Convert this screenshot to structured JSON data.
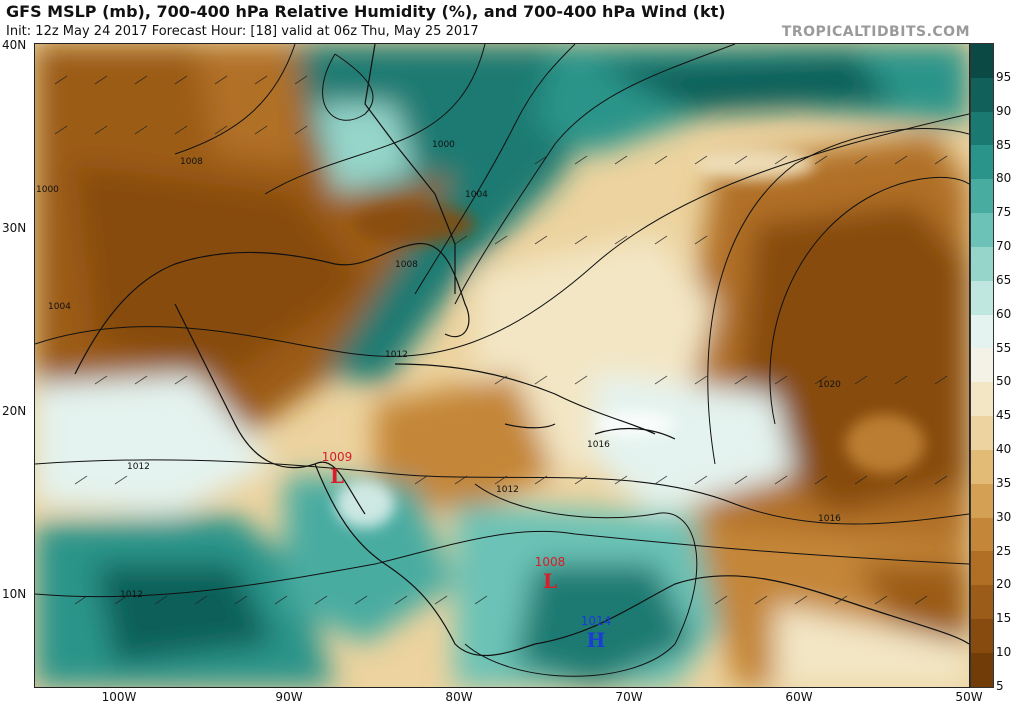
{
  "header": {
    "title": "GFS MSLP (mb), 700-400 hPa Relative Humidity (%), and 700-400 hPa Wind (kt)",
    "subtitle": "Init: 12z May 24 2017   Forecast Hour: [18]   valid at 06z Thu, May 25 2017",
    "brand": "TROPICALTIDBITS.COM"
  },
  "map": {
    "lat_labels": [
      "40N",
      "30N",
      "20N",
      "10N"
    ],
    "lon_labels": [
      "100W",
      "90W",
      "80W",
      "70W",
      "60W",
      "50W"
    ]
  },
  "colorbar": {
    "labels": [
      "95",
      "90",
      "85",
      "80",
      "75",
      "70",
      "65",
      "60",
      "55",
      "50",
      "45",
      "40",
      "35",
      "30",
      "25",
      "20",
      "15",
      "10",
      "5"
    ],
    "colors": [
      "#0b4a44",
      "#11605a",
      "#1a7a72",
      "#2a948a",
      "#48aca1",
      "#6cc2b6",
      "#95d5ca",
      "#bfe6df",
      "#e4f3ef",
      "#f4f1e6",
      "#f3e6c4",
      "#ecd39f",
      "#e2bb77",
      "#d4a054",
      "#c48638",
      "#b06f25",
      "#9b5b19",
      "#874b10",
      "#723c09"
    ]
  },
  "pressure_centers": [
    {
      "value": "1009",
      "symbol": "L",
      "color": "#d81e2a"
    },
    {
      "value": "1008",
      "symbol": "L",
      "color": "#d81e2a"
    },
    {
      "value": "1014",
      "symbol": "H",
      "color": "#1a3cd6"
    }
  ],
  "isobar_labels": [
    "1000",
    "1004",
    "1008",
    "1008",
    "1012",
    "1012",
    "1012",
    "1012",
    "1016",
    "1016",
    "1020",
    "1000",
    "1004"
  ]
}
